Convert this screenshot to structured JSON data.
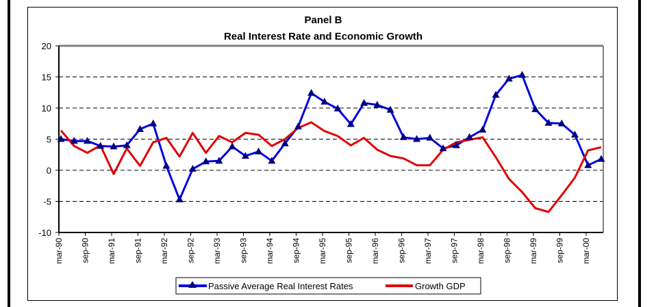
{
  "chart_data": {
    "type": "line",
    "title": "Panel B",
    "subtitle": "Real Interest Rate and Economic Growth",
    "xlabel": "",
    "ylabel": "",
    "ylim": [
      -10,
      20
    ],
    "yticks": [
      -10,
      -5,
      0,
      5,
      10,
      15,
      20
    ],
    "grid": "horizontal dashed",
    "legend_position": "bottom",
    "x_tick_labels": [
      "mar-90",
      "sep-90",
      "mar-91",
      "sep-91",
      "mar-92",
      "sep-92",
      "mar-93",
      "sep-93",
      "mar-94",
      "sep-94",
      "mar-95",
      "sep-95",
      "mar-96",
      "sep-96",
      "mar-97",
      "sep-97",
      "mar-98",
      "sep-98",
      "mar-99",
      "sep-99",
      "mar-00"
    ],
    "x": [
      "mar-90",
      "jun-90",
      "sep-90",
      "dec-90",
      "mar-91",
      "jun-91",
      "sep-91",
      "dec-91",
      "mar-92",
      "jun-92",
      "sep-92",
      "dec-92",
      "mar-93",
      "jun-93",
      "sep-93",
      "dec-93",
      "mar-94",
      "jun-94",
      "sep-94",
      "dec-94",
      "mar-95",
      "jun-95",
      "sep-95",
      "dec-95",
      "mar-96",
      "jun-96",
      "sep-96",
      "dec-96",
      "mar-97",
      "jun-97",
      "sep-97",
      "dec-97",
      "mar-98",
      "jun-98",
      "sep-98",
      "dec-98",
      "mar-99",
      "jun-99",
      "sep-99",
      "dec-99",
      "mar-00",
      "jun-00"
    ],
    "series": [
      {
        "name": "Passive Average Real Interest Rates",
        "color": "#0000e0",
        "marker": "triangle",
        "marker_color": "#000080",
        "values": [
          5.0,
          4.7,
          4.7,
          3.9,
          3.8,
          4.0,
          6.6,
          7.5,
          0.7,
          -4.7,
          0.2,
          1.4,
          1.5,
          3.8,
          2.3,
          3.0,
          1.5,
          4.3,
          7.0,
          12.4,
          11.0,
          9.9,
          7.4,
          10.8,
          10.5,
          9.7,
          5.3,
          5.0,
          5.2,
          3.5,
          4.0,
          5.3,
          6.5,
          12.1,
          14.7,
          15.3,
          9.8,
          7.6,
          7.5,
          5.7,
          0.8,
          1.8
        ]
      },
      {
        "name": "Growth GDP",
        "color": "#e00000",
        "marker": "none",
        "values": [
          6.4,
          3.9,
          2.8,
          4.0,
          -0.6,
          3.5,
          0.7,
          4.5,
          5.2,
          2.2,
          6.0,
          2.8,
          5.5,
          4.5,
          6.0,
          5.7,
          3.9,
          5.0,
          6.8,
          7.7,
          6.3,
          5.5,
          4.0,
          5.2,
          3.3,
          2.3,
          1.9,
          0.8,
          0.8,
          3.3,
          4.5,
          4.9,
          5.3,
          2.1,
          -1.4,
          -3.5,
          -6.1,
          -6.7,
          -4.0,
          -1.2,
          3.2,
          3.7
        ]
      }
    ]
  }
}
